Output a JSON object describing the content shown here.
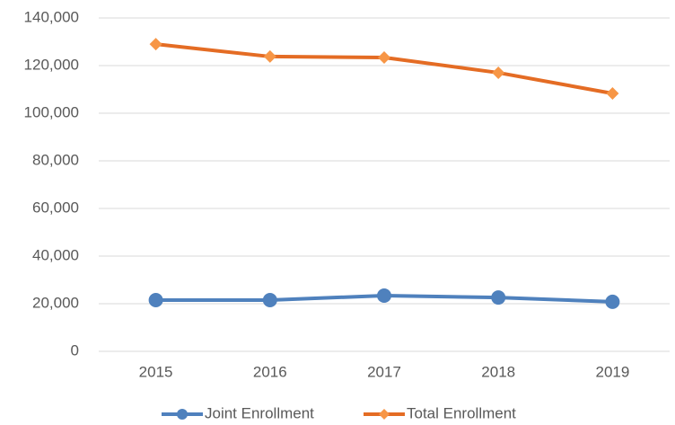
{
  "chart_data": {
    "type": "line",
    "categories": [
      "2015",
      "2016",
      "2017",
      "2018",
      "2019"
    ],
    "series": [
      {
        "name": "Joint Enrollment",
        "color": "#4f81bd",
        "marker_color": "#4f81bd",
        "marker": "circle",
        "values": [
          21500,
          21500,
          23400,
          22600,
          20800
        ]
      },
      {
        "name": "Total Enrollment",
        "color": "#e46c24",
        "marker_color": "#f79646",
        "marker": "diamond",
        "values": [
          129000,
          123800,
          123400,
          117000,
          108300
        ]
      }
    ],
    "ylim": [
      0,
      140000
    ],
    "yticks": [
      0,
      {
        "value": 20000,
        "label": "20,000"
      },
      {
        "value": 40000,
        "label": "40,000"
      },
      {
        "value": 60000,
        "label": "60,000"
      },
      {
        "value": 80000,
        "label": "80,000"
      },
      {
        "value": 100000,
        "label": "100,000"
      },
      {
        "value": 120000,
        "label": "120,000"
      },
      {
        "value": 140000,
        "label": "140,000"
      }
    ],
    "grid": true,
    "legend": "bottom"
  }
}
